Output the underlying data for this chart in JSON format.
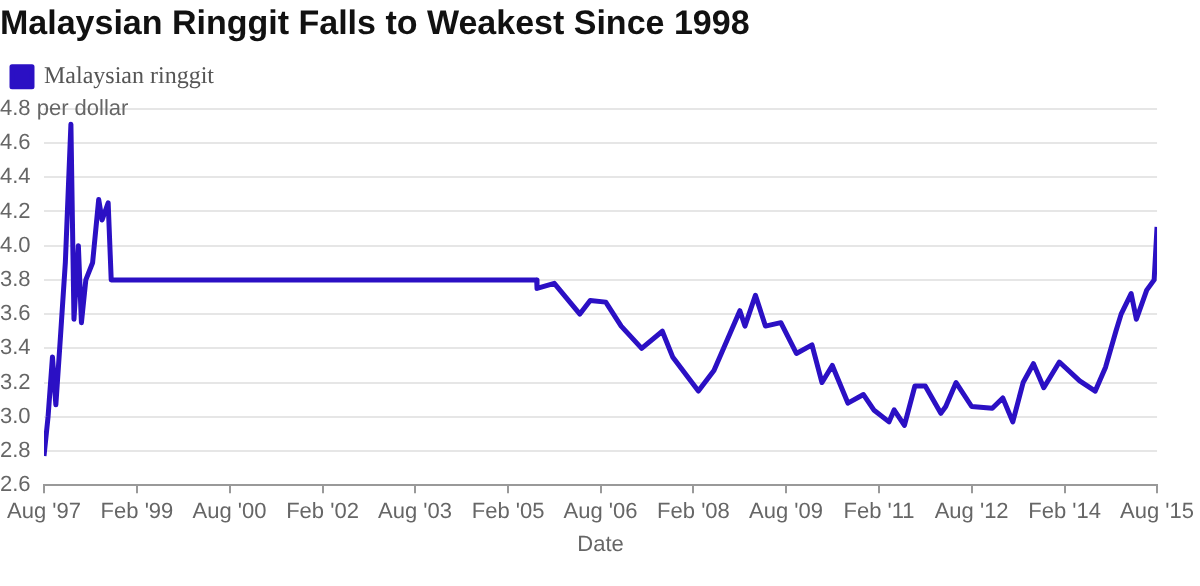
{
  "chart_data": {
    "type": "line",
    "title": "Malaysian Ringgit Falls to Weakest Since 1998",
    "xlabel": "Date",
    "x": [
      "1997-08-01",
      "1997-08-25",
      "1997-09-20",
      "1997-10-10",
      "1997-11-05",
      "1997-12-05",
      "1998-01-07",
      "1998-01-25",
      "1998-02-20",
      "1998-03-10",
      "1998-04-05",
      "1998-05-15",
      "1998-06-20",
      "1998-07-10",
      "1998-08-15",
      "1998-09-02",
      "2005-07-20",
      "2005-07-22",
      "2005-11",
      "2006-04",
      "2006-06",
      "2006-09",
      "2006-12",
      "2007-04",
      "2007-08",
      "2007-10",
      "2008-03",
      "2008-06",
      "2008-11",
      "2008-12",
      "2009-02",
      "2009-04",
      "2009-07",
      "2009-10",
      "2010-01",
      "2010-03",
      "2010-05",
      "2010-08",
      "2010-11",
      "2011-01",
      "2011-04",
      "2011-05",
      "2011-07",
      "2011-09",
      "2011-11",
      "2012-02",
      "2012-03",
      "2012-05",
      "2012-08",
      "2012-12",
      "2013-02",
      "2013-04",
      "2013-06",
      "2013-08",
      "2013-10",
      "2014-01",
      "2014-05",
      "2014-08",
      "2014-10",
      "2014-12",
      "2015-01",
      "2015-03",
      "2015-04",
      "2015-06",
      "2015-07-15",
      "2015-08"
    ],
    "series": [
      {
        "name": "Malaysian ringgit",
        "color": "#2b10c4",
        "values": [
          2.77,
          3.0,
          3.35,
          3.07,
          3.45,
          3.9,
          4.71,
          3.57,
          4.0,
          3.55,
          3.8,
          3.9,
          4.27,
          4.15,
          4.25,
          3.8,
          3.8,
          3.75,
          3.78,
          3.6,
          3.68,
          3.67,
          3.53,
          3.4,
          3.5,
          3.35,
          3.15,
          3.27,
          3.62,
          3.53,
          3.71,
          3.53,
          3.55,
          3.37,
          3.42,
          3.2,
          3.3,
          3.08,
          3.13,
          3.04,
          2.97,
          3.04,
          2.95,
          3.18,
          3.18,
          3.02,
          3.06,
          3.2,
          3.06,
          3.05,
          3.11,
          2.97,
          3.2,
          3.31,
          3.17,
          3.32,
          3.21,
          3.15,
          3.29,
          3.5,
          3.6,
          3.72,
          3.57,
          3.74,
          3.8,
          4.11
        ]
      }
    ],
    "xlim": [
      "1997-08",
      "2015-08"
    ],
    "xticks": [
      {
        "value": "1997-08",
        "label": "Aug '97"
      },
      {
        "value": "1999-02",
        "label": "Feb '99"
      },
      {
        "value": "2000-08",
        "label": "Aug '00"
      },
      {
        "value": "2002-02",
        "label": "Feb '02"
      },
      {
        "value": "2003-08",
        "label": "Aug '03"
      },
      {
        "value": "2005-02",
        "label": "Feb '05"
      },
      {
        "value": "2006-08",
        "label": "Aug '06"
      },
      {
        "value": "2008-02",
        "label": "Feb '08"
      },
      {
        "value": "2009-08",
        "label": "Aug '09"
      },
      {
        "value": "2011-02",
        "label": "Feb '11"
      },
      {
        "value": "2012-08",
        "label": "Aug '12"
      },
      {
        "value": "2014-02",
        "label": "Feb '14"
      },
      {
        "value": "2015-08",
        "label": "Aug '15"
      }
    ],
    "ylim": [
      2.6,
      4.8
    ],
    "yticks": [
      {
        "value": 2.6,
        "label": "2.6"
      },
      {
        "value": 2.8,
        "label": "2.8"
      },
      {
        "value": 3.0,
        "label": "3.0"
      },
      {
        "value": 3.2,
        "label": "3.2"
      },
      {
        "value": 3.4,
        "label": "3.4"
      },
      {
        "value": 3.6,
        "label": "3.6"
      },
      {
        "value": 3.8,
        "label": "3.8"
      },
      {
        "value": 4.0,
        "label": "4.0"
      },
      {
        "value": 4.2,
        "label": "4.2"
      },
      {
        "value": 4.4,
        "label": "4.4"
      },
      {
        "value": 4.6,
        "label": "4.6"
      },
      {
        "value": 4.8,
        "label": "4.8 per dollar"
      }
    ],
    "grid": "y",
    "legend": "top left",
    "marker": "none",
    "line_style": "solid"
  }
}
